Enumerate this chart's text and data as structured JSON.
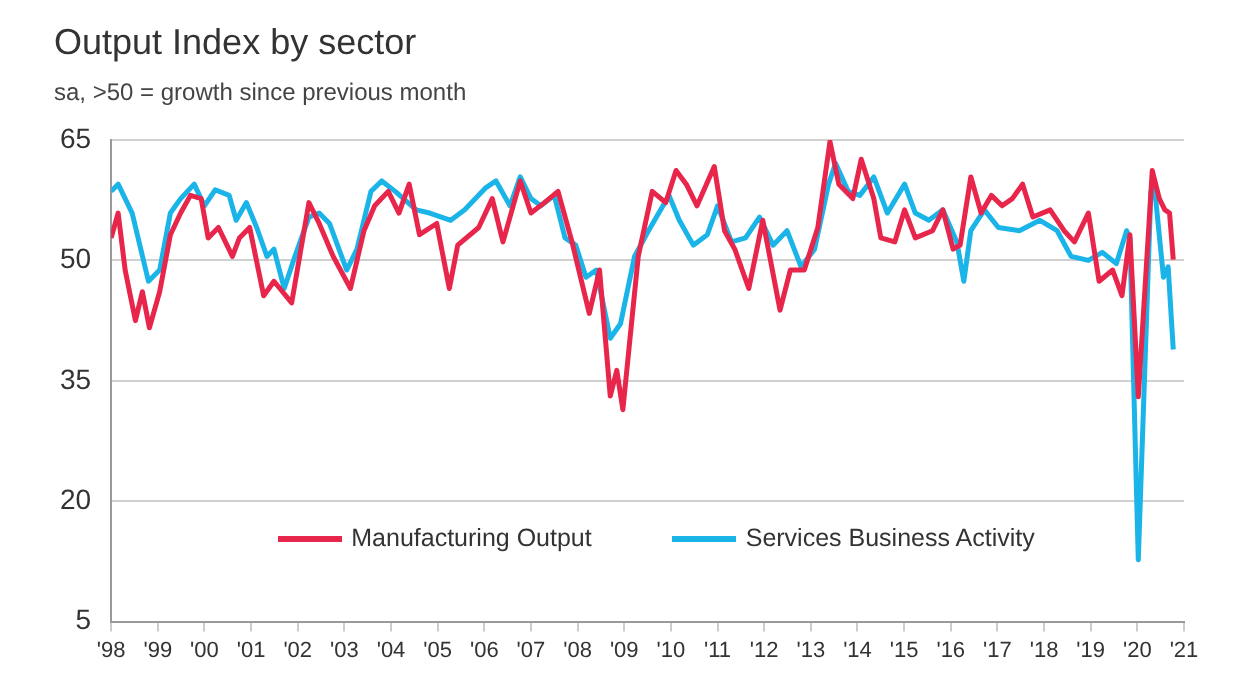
{
  "chart_data": {
    "type": "line",
    "title": "Output Index by sector",
    "subtitle": "sa, >50 = growth since previous month",
    "xlim": [
      1998,
      2021
    ],
    "xticks": [
      {
        "value": 1998,
        "label": "'98"
      },
      {
        "value": 1999,
        "label": "'99"
      },
      {
        "value": 2000,
        "label": "'00"
      },
      {
        "value": 2001,
        "label": "'01"
      },
      {
        "value": 2002,
        "label": "'02"
      },
      {
        "value": 2003,
        "label": "'03"
      },
      {
        "value": 2004,
        "label": "'04"
      },
      {
        "value": 2005,
        "label": "'05"
      },
      {
        "value": 2006,
        "label": "'06"
      },
      {
        "value": 2007,
        "label": "'07"
      },
      {
        "value": 2008,
        "label": "'08"
      },
      {
        "value": 2009,
        "label": "'09"
      },
      {
        "value": 2010,
        "label": "'10"
      },
      {
        "value": 2011,
        "label": "'11"
      },
      {
        "value": 2012,
        "label": "'12"
      },
      {
        "value": 2013,
        "label": "'13"
      },
      {
        "value": 2014,
        "label": "'14"
      },
      {
        "value": 2015,
        "label": "'15"
      },
      {
        "value": 2016,
        "label": "'16"
      },
      {
        "value": 2017,
        "label": "'17"
      },
      {
        "value": 2018,
        "label": "'18"
      },
      {
        "value": 2019,
        "label": "'19"
      },
      {
        "value": 2020,
        "label": "'20"
      },
      {
        "value": 2021,
        "label": "'21"
      }
    ],
    "ylim": [
      5,
      65
    ],
    "yticks": [
      5,
      20,
      35,
      50,
      65
    ],
    "grid": "y",
    "legend": "bottom",
    "marker": "none",
    "line_style": "solid",
    "series": [
      {
        "name": "Manufacturing Output",
        "color": "#e8254a",
        "x": [
          1998.0,
          1998.15,
          1998.3,
          1998.52,
          1998.67,
          1998.82,
          1999.04,
          1999.27,
          1999.49,
          1999.7,
          1999.93,
          2000.08,
          2000.3,
          2000.6,
          2000.75,
          2000.97,
          2001.27,
          2001.49,
          2001.87,
          2002.24,
          2002.46,
          2002.76,
          2003.13,
          2003.42,
          2003.65,
          2003.94,
          2004.17,
          2004.39,
          2004.61,
          2004.98,
          2005.25,
          2005.43,
          2005.88,
          2006.17,
          2006.4,
          2006.77,
          2007.0,
          2007.29,
          2007.58,
          2007.88,
          2008.25,
          2008.47,
          2008.7,
          2008.84,
          2008.97,
          2009.3,
          2009.6,
          2009.89,
          2010.11,
          2010.33,
          2010.56,
          2010.93,
          2011.15,
          2011.37,
          2011.67,
          2011.97,
          2012.34,
          2012.56,
          2012.86,
          2013.15,
          2013.41,
          2013.6,
          2013.9,
          2014.08,
          2014.35,
          2014.5,
          2014.8,
          2015.01,
          2015.24,
          2015.61,
          2015.83,
          2016.05,
          2016.2,
          2016.43,
          2016.65,
          2016.87,
          2017.1,
          2017.32,
          2017.54,
          2017.76,
          2018.13,
          2018.43,
          2018.65,
          2018.95,
          2019.18,
          2019.47,
          2019.67,
          2019.84,
          2020.02,
          2020.32,
          2020.47,
          2020.59,
          2020.69,
          2020.77
        ],
        "values": [
          52.8,
          55.9,
          48.8,
          42.5,
          46.1,
          41.6,
          46.1,
          53.2,
          55.9,
          58.1,
          57.7,
          52.8,
          54.1,
          50.5,
          52.8,
          54.1,
          45.6,
          47.4,
          44.7,
          57.2,
          54.6,
          50.5,
          46.5,
          53.7,
          56.8,
          58.6,
          55.9,
          59.5,
          53.2,
          54.6,
          46.5,
          51.9,
          54.1,
          57.7,
          52.3,
          59.9,
          55.9,
          57.2,
          58.6,
          52.3,
          43.4,
          48.8,
          33.1,
          36.3,
          31.4,
          50.5,
          58.6,
          57.2,
          61.2,
          59.5,
          56.8,
          61.7,
          53.7,
          51.4,
          46.5,
          55,
          43.8,
          48.8,
          48.8,
          54.1,
          64.8,
          59.5,
          57.7,
          62.6,
          57.7,
          52.8,
          52.3,
          56.3,
          52.8,
          53.7,
          56.3,
          51.4,
          51.9,
          60.4,
          55.9,
          58.1,
          56.8,
          57.7,
          59.5,
          55.4,
          56.3,
          53.7,
          52.3,
          55.9,
          47.4,
          48.8,
          45.6,
          53.2,
          33,
          61.2,
          57.7,
          56.3,
          55.9,
          50.1
        ]
      },
      {
        "name": "Services Business Activity",
        "color": "#1ab4e8",
        "x": [
          1998.0,
          1998.15,
          1998.45,
          1998.8,
          1999.04,
          1999.27,
          1999.49,
          1999.78,
          2000.0,
          2000.23,
          2000.53,
          2000.68,
          2000.9,
          2001.12,
          2001.34,
          2001.49,
          2001.71,
          2001.94,
          2002.24,
          2002.46,
          2002.68,
          2003.05,
          2003.27,
          2003.57,
          2003.8,
          2004.09,
          2004.54,
          2004.83,
          2005.28,
          2005.58,
          2006.02,
          2006.25,
          2006.55,
          2006.77,
          2007.0,
          2007.21,
          2007.5,
          2007.73,
          2007.96,
          2008.18,
          2008.4,
          2008.7,
          2008.92,
          2009.22,
          2009.52,
          2009.74,
          2009.96,
          2010.18,
          2010.48,
          2010.78,
          2011.0,
          2011.3,
          2011.6,
          2011.9,
          2012.19,
          2012.49,
          2012.79,
          2013.08,
          2013.38,
          2013.53,
          2013.8,
          2014.05,
          2014.35,
          2014.64,
          2015.01,
          2015.24,
          2015.53,
          2015.83,
          2016.13,
          2016.28,
          2016.43,
          2016.72,
          2017.02,
          2017.47,
          2017.91,
          2018.28,
          2018.58,
          2018.95,
          2019.25,
          2019.55,
          2019.77,
          2019.84,
          2020.02,
          2020.29,
          2020.37,
          2020.56,
          2020.66,
          2020.77
        ],
        "values": [
          58.6,
          59.5,
          55.9,
          47.4,
          48.8,
          55.9,
          57.7,
          59.5,
          56.8,
          58.8,
          58.1,
          55,
          57.2,
          54.1,
          50.5,
          51.4,
          46.5,
          50.5,
          55.4,
          55.9,
          54.6,
          48.8,
          51.4,
          58.6,
          59.9,
          58.6,
          56.3,
          55.9,
          55,
          56.3,
          59,
          59.9,
          56.8,
          60.4,
          57.7,
          56.8,
          58.1,
          52.8,
          51.9,
          47.9,
          48.8,
          40.3,
          42.1,
          50.5,
          53.7,
          55.9,
          58.1,
          55,
          51.9,
          53.2,
          56.8,
          52.3,
          52.8,
          55.4,
          51.9,
          53.7,
          49.2,
          51.4,
          59.5,
          62.1,
          58.6,
          58.1,
          60.4,
          55.9,
          59.5,
          55.9,
          55,
          56.3,
          52.3,
          47.4,
          53.7,
          56.3,
          54.1,
          53.7,
          55,
          53.7,
          50.5,
          50,
          51,
          49.6,
          53.7,
          52.8,
          12.7,
          58.6,
          59,
          47.9,
          49.2,
          38.9
        ]
      }
    ]
  }
}
